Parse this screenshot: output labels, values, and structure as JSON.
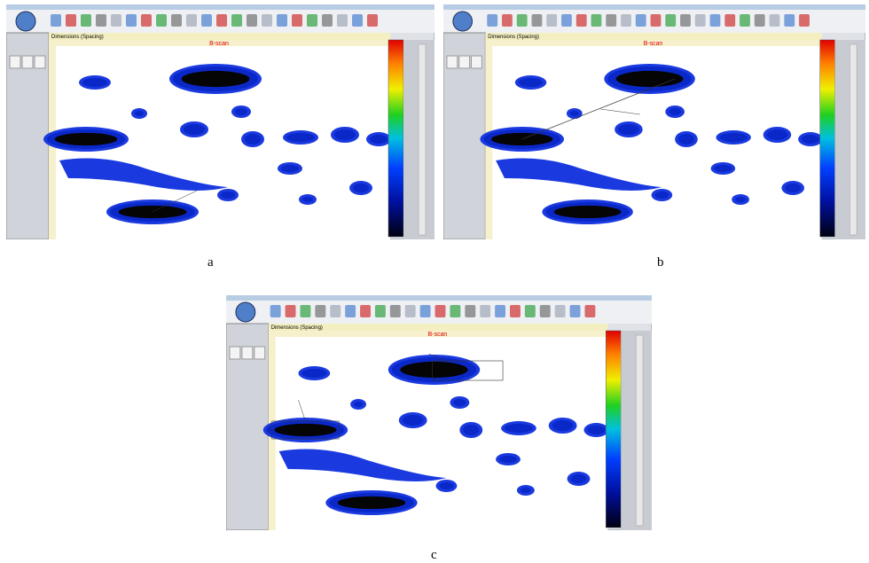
{
  "panels": [
    {
      "label": "a",
      "header": "Dimensions (Spacing)",
      "title": "B-scan"
    },
    {
      "label": "b",
      "header": "Dimensions (Spacing)",
      "title": "B-scan"
    },
    {
      "label": "c",
      "header": "Dimensions (Spacing)",
      "title": "B-scan"
    }
  ]
}
